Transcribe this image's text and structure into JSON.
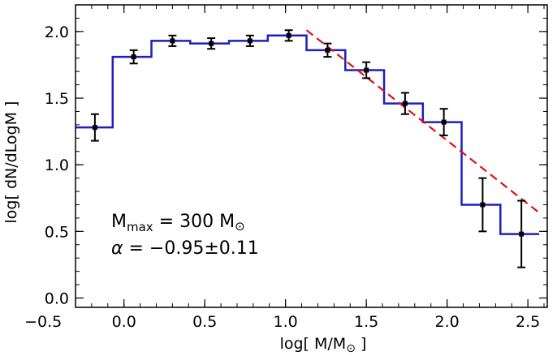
{
  "chart_data": {
    "type": "line",
    "xlabel_main": "log[ M/M",
    "xlabel_tail": " ]",
    "ylabel": "log[ dN/dLogM ]",
    "xlim": [
      -0.3,
      2.62
    ],
    "ylim": [
      -0.07,
      2.2
    ],
    "xticks": [
      -0.5,
      0.0,
      0.5,
      1.0,
      1.5,
      2.0,
      2.5
    ],
    "xtick_labels": [
      "−0.5",
      "0.0",
      "0.5",
      "1.0",
      "1.5",
      "2.0",
      "2.5"
    ],
    "yticks": [
      0.0,
      0.5,
      1.0,
      1.5,
      2.0
    ],
    "ytick_labels": [
      "0.0",
      "0.5",
      "1.0",
      "1.5",
      "2.0"
    ],
    "grid": false,
    "series": [
      {
        "kind": "step-histogram",
        "color": "#1f1fbf",
        "bin_edges": [
          -0.3,
          -0.07,
          0.17,
          0.41,
          0.65,
          0.89,
          1.13,
          1.37,
          1.61,
          1.85,
          2.09,
          2.33,
          2.57
        ],
        "values": [
          1.28,
          1.81,
          1.93,
          1.91,
          1.93,
          1.97,
          1.86,
          1.71,
          1.46,
          1.32,
          0.7,
          0.48
        ]
      },
      {
        "kind": "points-with-errorbars",
        "color": "#000000",
        "x": [
          -0.18,
          0.06,
          0.3,
          0.54,
          0.78,
          1.02,
          1.26,
          1.5,
          1.74,
          1.98,
          2.22,
          2.46
        ],
        "y": [
          1.28,
          1.81,
          1.93,
          1.91,
          1.93,
          1.97,
          1.86,
          1.71,
          1.46,
          1.32,
          0.7,
          0.48
        ],
        "yerr": [
          0.1,
          0.05,
          0.04,
          0.04,
          0.04,
          0.04,
          0.05,
          0.06,
          0.08,
          0.1,
          0.2,
          0.25
        ]
      },
      {
        "kind": "dashed-fit",
        "color": "#e01010",
        "x": [
          1.13,
          2.57
        ],
        "y": [
          2.01,
          0.64
        ]
      }
    ],
    "annotations": {
      "mmax_symbol": "M",
      "mmax_subscript": "max",
      "mmax_value": " = 300 M",
      "alpha_symbol": "α",
      "alpha_value": " = −0.95±0.11"
    }
  }
}
